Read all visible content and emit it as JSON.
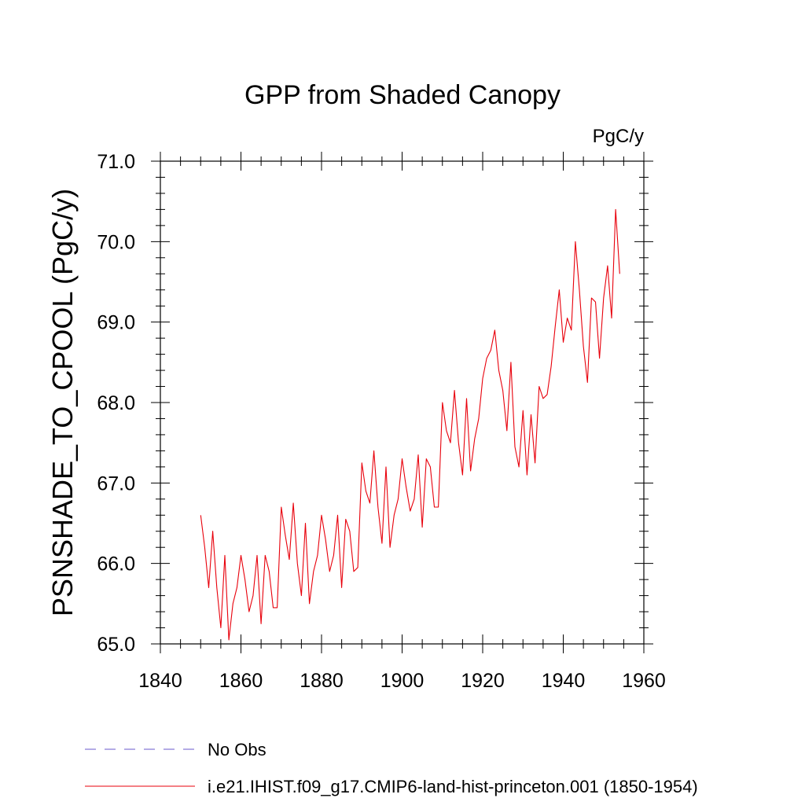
{
  "chart_data": {
    "type": "line",
    "title": "GPP from Shaded Canopy",
    "units": "PgC/y",
    "ylabel": "PSNSHADE_TO_CPOOL  (PgC/y)",
    "xlabel": "",
    "xlim": [
      1840,
      1960
    ],
    "ylim": [
      65.0,
      71.0
    ],
    "x_ticks": [
      1840,
      1860,
      1880,
      1900,
      1920,
      1940,
      1960
    ],
    "x_tick_labels": [
      "1840",
      "1860",
      "1880",
      "1900",
      "1920",
      "1940",
      "1960"
    ],
    "y_ticks": [
      65.0,
      66.0,
      67.0,
      68.0,
      69.0,
      70.0,
      71.0
    ],
    "y_tick_labels": [
      "65.0",
      "66.0",
      "67.0",
      "68.0",
      "69.0",
      "70.0",
      "71.0"
    ],
    "grid": false,
    "legend_placement": "bottom",
    "colors": {
      "model": "#e8000b",
      "obs": "#6a5acd"
    },
    "series": [
      {
        "name": "No Obs",
        "style": "dashed",
        "values": []
      },
      {
        "name": "i.e21.IHIST.f09_g17.CMIP6-land-hist-princeton.001 (1850-1954)",
        "style": "solid",
        "x": [
          1850,
          1851,
          1852,
          1853,
          1854,
          1855,
          1856,
          1857,
          1858,
          1859,
          1860,
          1861,
          1862,
          1863,
          1864,
          1865,
          1866,
          1867,
          1868,
          1869,
          1870,
          1871,
          1872,
          1873,
          1874,
          1875,
          1876,
          1877,
          1878,
          1879,
          1880,
          1881,
          1882,
          1883,
          1884,
          1885,
          1886,
          1887,
          1888,
          1889,
          1890,
          1891,
          1892,
          1893,
          1894,
          1895,
          1896,
          1897,
          1898,
          1899,
          1900,
          1901,
          1902,
          1903,
          1904,
          1905,
          1906,
          1907,
          1908,
          1909,
          1910,
          1911,
          1912,
          1913,
          1914,
          1915,
          1916,
          1917,
          1918,
          1919,
          1920,
          1921,
          1922,
          1923,
          1924,
          1925,
          1926,
          1927,
          1928,
          1929,
          1930,
          1931,
          1932,
          1933,
          1934,
          1935,
          1936,
          1937,
          1938,
          1939,
          1940,
          1941,
          1942,
          1943,
          1944,
          1945,
          1946,
          1947,
          1948,
          1949,
          1950,
          1951,
          1952,
          1953,
          1954
        ],
        "values": [
          66.6,
          66.2,
          65.7,
          66.4,
          65.7,
          65.2,
          66.1,
          65.05,
          65.5,
          65.7,
          66.1,
          65.8,
          65.4,
          65.6,
          66.1,
          65.25,
          66.1,
          65.9,
          65.45,
          65.45,
          66.7,
          66.35,
          66.05,
          66.75,
          66.0,
          65.6,
          66.5,
          65.5,
          65.9,
          66.1,
          66.6,
          66.3,
          65.9,
          66.1,
          66.6,
          65.7,
          66.55,
          66.4,
          65.9,
          65.95,
          67.25,
          66.9,
          66.75,
          67.4,
          66.7,
          66.25,
          67.2,
          66.2,
          66.6,
          66.8,
          67.3,
          66.95,
          66.65,
          66.8,
          67.35,
          66.45,
          67.3,
          67.2,
          66.7,
          66.7,
          68.0,
          67.65,
          67.5,
          68.15,
          67.5,
          67.1,
          68.05,
          67.15,
          67.55,
          67.8,
          68.3,
          68.55,
          68.65,
          68.9,
          68.4,
          68.15,
          67.65,
          68.5,
          67.45,
          67.2,
          67.9,
          67.1,
          67.85,
          67.25,
          68.2,
          68.05,
          68.1,
          68.45,
          68.95,
          69.4,
          68.75,
          69.05,
          68.9,
          70.0,
          69.4,
          68.7,
          68.25,
          69.3,
          69.25,
          68.55,
          69.3,
          69.7,
          69.05,
          70.4,
          69.6
        ]
      }
    ]
  }
}
